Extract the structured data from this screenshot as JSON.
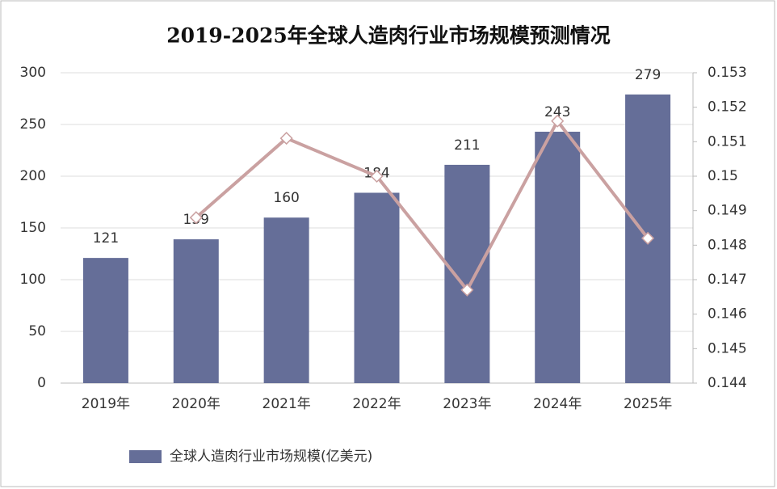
{
  "chart_data": {
    "type": "bar_line",
    "title": "2019-2025年全球人造肉行业市场规模预测情况",
    "categories": [
      "2019年",
      "2020年",
      "2021年",
      "2022年",
      "2023年",
      "2024年",
      "2025年"
    ],
    "series": [
      {
        "name": "全球人造肉行业市场规模(亿美元)",
        "color": "#656e98",
        "type": "bar",
        "values": [
          121,
          139,
          160,
          184,
          211,
          243,
          279
        ]
      },
      {
        "color": "#caa1a1",
        "type": "line",
        "axis": "y2",
        "values": [
          null,
          0.1488,
          0.1511,
          0.15,
          0.1467,
          0.1516,
          0.1482
        ]
      }
    ],
    "ylim": [
      0,
      300
    ],
    "yticks": [
      0,
      50,
      100,
      150,
      200,
      250,
      300
    ],
    "y2lim": [
      0.144,
      0.153
    ],
    "y2ticks": [
      0.144,
      0.145,
      0.146,
      0.147,
      0.148,
      0.149,
      0.15,
      0.151,
      0.152,
      0.153
    ],
    "grid": true,
    "legend": "bottom-left"
  }
}
